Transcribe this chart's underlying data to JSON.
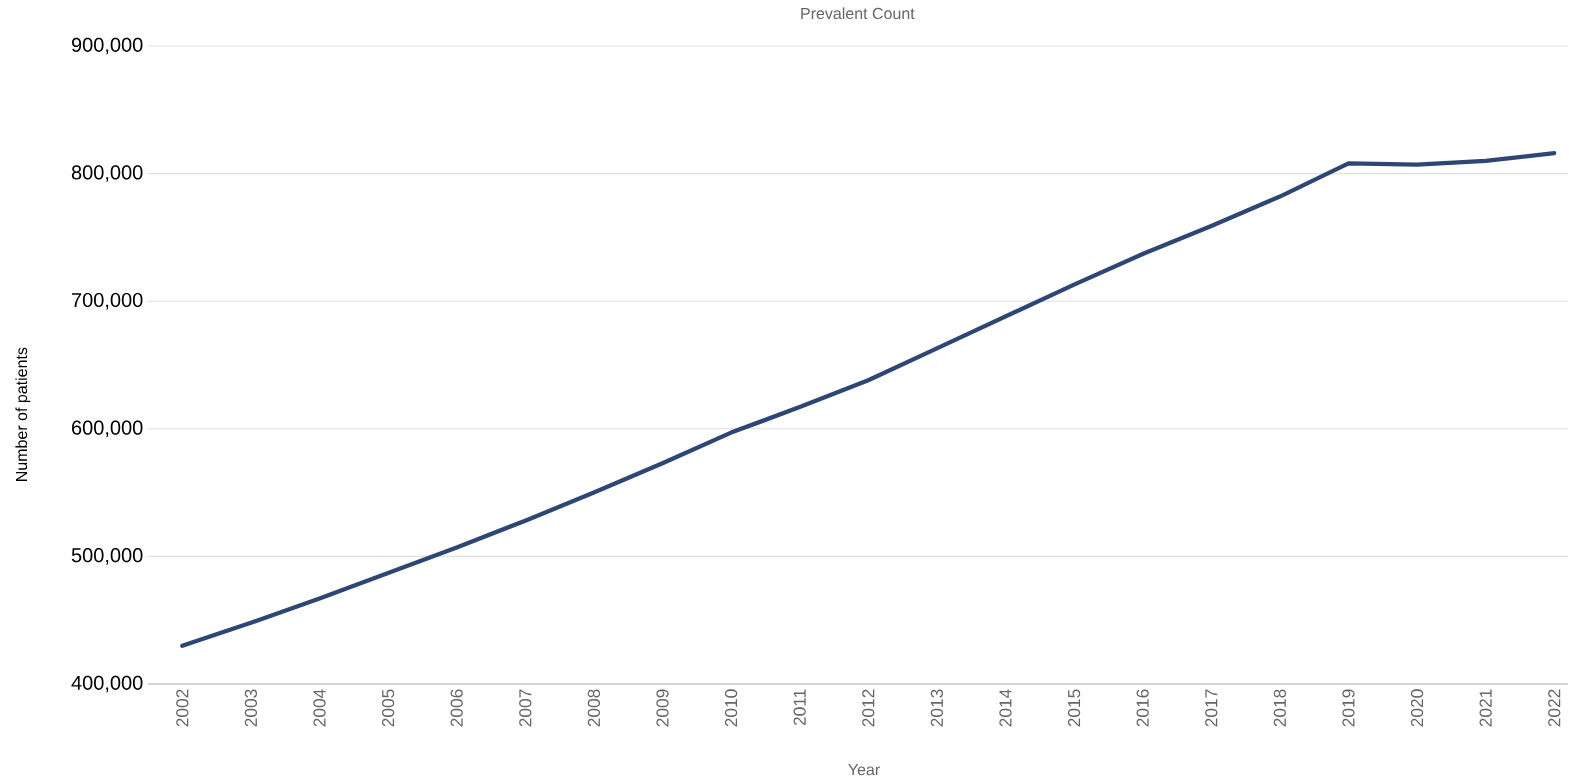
{
  "chart_data": {
    "type": "line",
    "title": "Prevalent Count",
    "xlabel": "Year",
    "ylabel": "Number of patients",
    "categories": [
      "2002",
      "2003",
      "2004",
      "2005",
      "2006",
      "2007",
      "2008",
      "2009",
      "2010",
      "2011",
      "2012",
      "2013",
      "2014",
      "2015",
      "2016",
      "2017",
      "2018",
      "2019",
      "2020",
      "2021",
      "2022"
    ],
    "series": [
      {
        "color": "#2e4674",
        "values": [
          430000,
          448000,
          467000,
          487000,
          507000,
          528000,
          550000,
          573000,
          597000,
          617000,
          638000,
          663000,
          688000,
          713000,
          737000,
          759000,
          782000,
          808000,
          807000,
          810000,
          816000
        ]
      }
    ],
    "ylim": [
      400000,
      900000
    ],
    "yticks": [
      {
        "value": 400000,
        "label": "400,000"
      },
      {
        "value": 500000,
        "label": "500,000"
      },
      {
        "value": 600000,
        "label": "600,000"
      },
      {
        "value": 700000,
        "label": "700,000"
      },
      {
        "value": 800000,
        "label": "800,000"
      },
      {
        "value": 900000,
        "label": "900,000"
      }
    ],
    "grid": "y",
    "marker": "none",
    "line_style": "solid"
  }
}
